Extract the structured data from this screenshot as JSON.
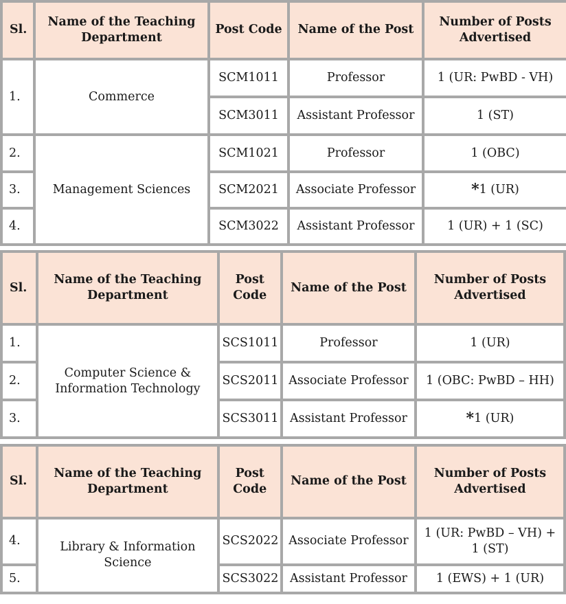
{
  "headers": {
    "sl": "Sl.",
    "dept": "Name of the Teaching Department",
    "code": "Post Code",
    "post": "Name of the Post",
    "num": "Number of Posts Advertised"
  },
  "table1": {
    "dept_commerce": "Commerce",
    "dept_mgmt": "Management Sciences",
    "rows": [
      {
        "sl": "1.",
        "code": "SCM1011",
        "post": "Professor",
        "num": "1 (UR: PwBD - VH)"
      },
      {
        "sl": "",
        "code": "SCM3011",
        "post": "Assistant Professor",
        "num": "1 (ST)"
      },
      {
        "sl": "2.",
        "code": "SCM1021",
        "post": "Professor",
        "num": "1 (OBC)"
      },
      {
        "sl": "3.",
        "code": "SCM2021",
        "post": "Associate Professor",
        "num_star": "*",
        "num": "1 (UR)"
      },
      {
        "sl": "4.",
        "code": "SCM3022",
        "post": "Assistant Professor",
        "num": "1 (UR) + 1 (SC)"
      }
    ]
  },
  "table2": {
    "dept": "Computer Science & Information Technology",
    "rows": [
      {
        "sl": "1.",
        "code": "SCS1011",
        "post": "Professor",
        "num": "1 (UR)"
      },
      {
        "sl": "2.",
        "code": "SCS2011",
        "post": "Associate Professor",
        "num": "1 (OBC: PwBD – HH)"
      },
      {
        "sl": "3.",
        "code": "SCS3011",
        "post": "Assistant Professor",
        "num_star": "*",
        "num": "1 (UR)"
      }
    ]
  },
  "table3": {
    "dept": "Library & Information Science",
    "rows": [
      {
        "sl": "4.",
        "code": "SCS2022",
        "post": "Associate Professor",
        "num": "1 (UR: PwBD – VH) + 1 (ST)"
      },
      {
        "sl": "5.",
        "code": "SCS3022",
        "post": "Assistant Professor",
        "num": "1 (EWS) + 1 (UR)"
      }
    ]
  }
}
